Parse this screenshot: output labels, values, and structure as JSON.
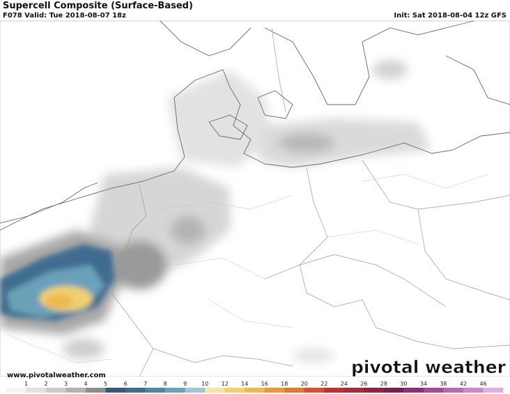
{
  "header": {
    "title": "Supercell Composite (Surface-Based)",
    "valid": "F078 Valid: Tue 2018-08-07 18z",
    "init": "Init: Sat 2018-08-04 12z GFS"
  },
  "footer": {
    "website": "www.pivotalweather.com",
    "watermark": "pivotal weather"
  },
  "colorbar": {
    "labels": [
      1,
      2,
      3,
      4,
      5,
      6,
      7,
      8,
      9,
      10,
      12,
      14,
      16,
      18,
      20,
      22,
      24,
      26,
      28,
      30,
      34,
      38,
      42,
      46
    ],
    "colors": [
      "#f4f4f4",
      "#e2e2e2",
      "#cacaca",
      "#b2b2b2",
      "#8e8e8e",
      "#3b5873",
      "#3f6d8f",
      "#4e86a6",
      "#6ca1ba",
      "#a2c5cf",
      "#f4e5a2",
      "#f0d070",
      "#ecb94f",
      "#e89a39",
      "#e07831",
      "#d35131",
      "#bf3131",
      "#a82b3b",
      "#902446",
      "#7a2050",
      "#8b3171",
      "#a24b91",
      "#b869b1",
      "#cc88cc",
      "#e0aee0"
    ]
  }
}
